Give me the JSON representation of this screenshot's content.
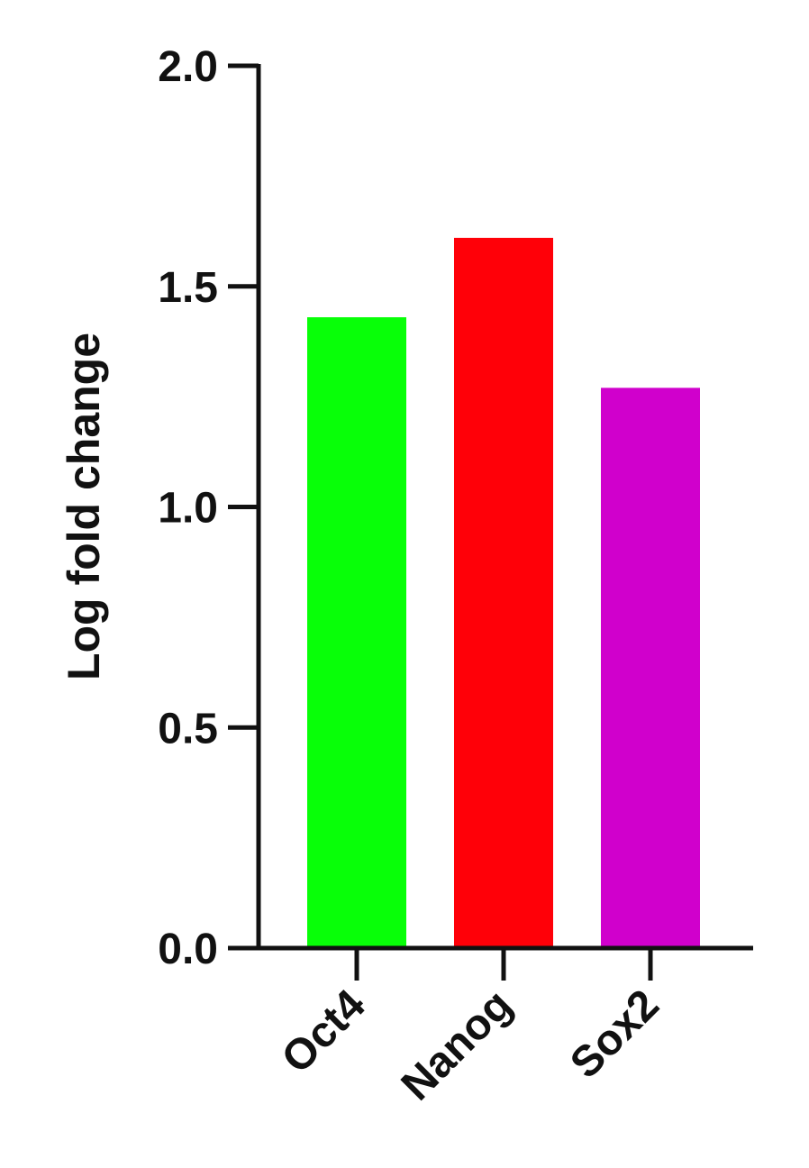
{
  "chart_data": {
    "type": "bar",
    "title": "",
    "xlabel": "",
    "ylabel": "Log fold change",
    "categories": [
      "Oct4",
      "Nanog",
      "Sox2"
    ],
    "values": [
      1.43,
      1.61,
      1.27
    ],
    "colors": [
      "#08ff08",
      "#ff0008",
      "#d000cc"
    ],
    "ylim": [
      0,
      2.0
    ],
    "yticks": [
      "0.0",
      "0.5",
      "1.0",
      "1.5",
      "2.0"
    ],
    "grid": false,
    "legend": "none"
  }
}
